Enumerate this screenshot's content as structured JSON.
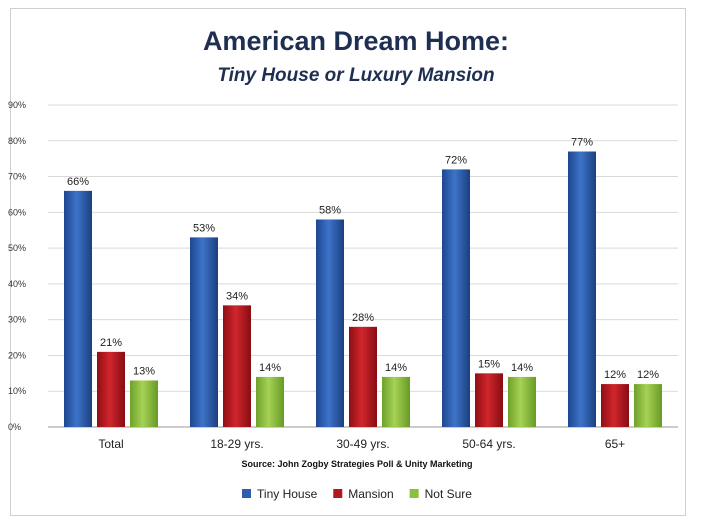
{
  "chart_data": {
    "type": "bar",
    "title": "American Dream Home:",
    "subtitle": "Tiny House or Luxury Mansion",
    "source": "Source: John Zogby Strategies Poll & Unity Marketing",
    "categories": [
      "Total",
      "18-29 yrs.",
      "30-49 yrs.",
      "50-64 yrs.",
      "65+"
    ],
    "series": [
      {
        "name": "Tiny House",
        "color": "#2e5fae",
        "values": [
          66,
          53,
          58,
          72,
          77
        ]
      },
      {
        "name": "Mansion",
        "color": "#b4161d",
        "values": [
          21,
          34,
          28,
          15,
          12
        ]
      },
      {
        "name": "Not Sure",
        "color": "#8cbf3a",
        "values": [
          13,
          14,
          14,
          14,
          12
        ]
      }
    ],
    "ylim": [
      0,
      90
    ],
    "yticks": [
      0,
      10,
      20,
      30,
      40,
      50,
      60,
      70,
      80,
      90
    ],
    "value_suffix": "%",
    "grid": true,
    "legend": "bottom-center"
  }
}
